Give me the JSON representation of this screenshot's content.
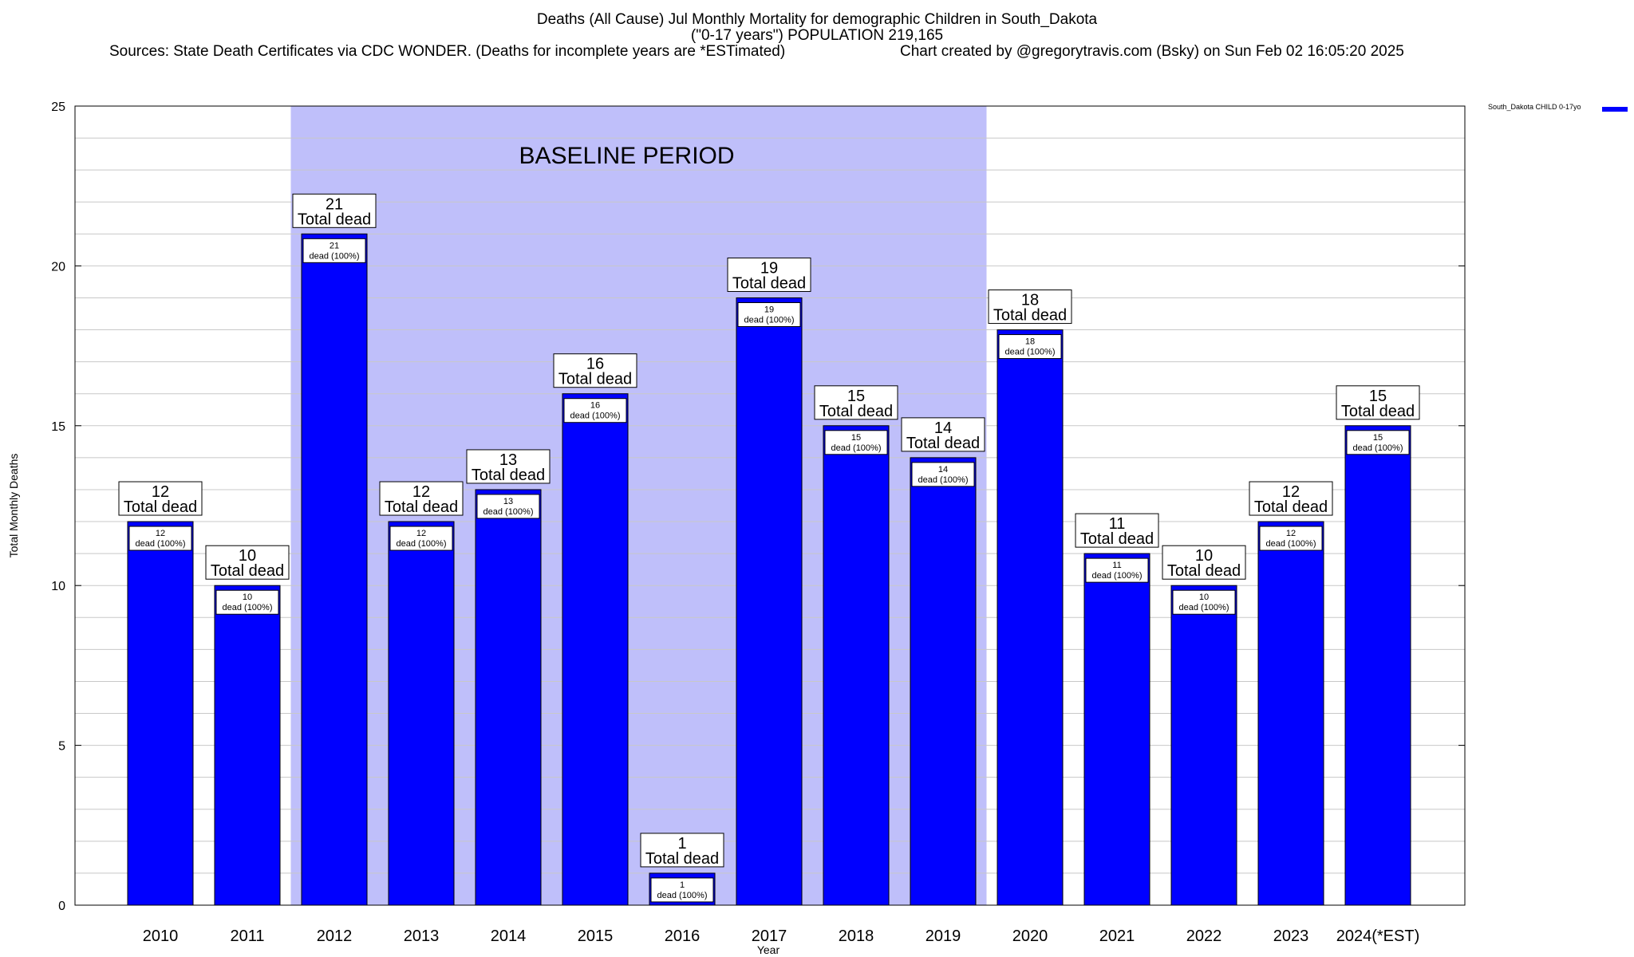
{
  "header": {
    "title_line1": "Deaths (All Cause) Jul Monthly Mortality for demographic Children in South_Dakota",
    "title_line2": "(\"0-17 years\") POPULATION 219,165",
    "sources": "Sources: State Death Certificates via CDC WONDER. (Deaths for incomplete years are *ESTimated)",
    "credit": "Chart created by @gregorytravis.com (Bsky) on Sun Feb 02 16:05:20 2025"
  },
  "colors": {
    "bar": "#0000ff",
    "baseline_band": "#bfbffa",
    "grid": "#c8c8c8"
  },
  "chart_data": {
    "type": "bar",
    "categories": [
      "2010",
      "2011",
      "2012",
      "2013",
      "2014",
      "2015",
      "2016",
      "2017",
      "2018",
      "2019",
      "2020",
      "2021",
      "2022",
      "2023",
      "2024(*EST)"
    ],
    "series": [
      {
        "name": "South_Dakota CHILD 0-17yo",
        "values": [
          12,
          10,
          21,
          12,
          13,
          16,
          1,
          19,
          15,
          14,
          18,
          11,
          10,
          12,
          15
        ]
      }
    ],
    "ylabel": "Total Monthly Deaths",
    "xlabel": "Year",
    "ylim": [
      0,
      25
    ],
    "yticks": [
      0,
      5,
      10,
      15,
      20,
      25
    ],
    "grid": true,
    "legend": "top-right",
    "baseline_band": {
      "label": "BASELINE PERIOD",
      "from": "2012",
      "to": "2019"
    },
    "top_label_suffix": "Total dead",
    "inner_label_suffix": "dead (100%)"
  }
}
